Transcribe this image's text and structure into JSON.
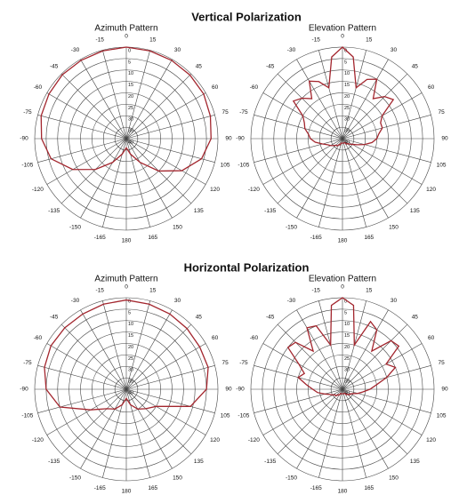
{
  "sections": [
    {
      "title": "Vertical Polarization"
    },
    {
      "title": "Horizontal Polarization"
    }
  ],
  "chart_data": [
    {
      "type": "polar",
      "title": "Azimuth Pattern",
      "theta": [
        -165,
        -150,
        -135,
        -120,
        -105,
        -90,
        -75,
        -60,
        -45,
        -30,
        -15,
        0,
        15,
        30,
        45,
        60,
        75,
        90,
        105,
        120,
        135,
        150,
        165,
        180
      ],
      "series": [
        {
          "color": "#a3262e",
          "values": [
            33,
            28,
            21,
            13,
            6,
            3,
            1.5,
            1,
            0.5,
            0.5,
            0.3,
            0,
            0.3,
            0.5,
            0.7,
            1,
            2,
            3,
            6,
            12,
            20,
            28,
            33,
            36
          ]
        }
      ],
      "rlim": [
        40,
        0
      ],
      "rticks": [
        0,
        5,
        10,
        15,
        20,
        25,
        30,
        35,
        40
      ],
      "thetaticks": [
        0,
        15,
        30,
        45,
        60,
        75,
        90,
        105,
        120,
        135,
        150,
        165,
        180,
        -165,
        -150,
        -135,
        -120,
        -105,
        -90,
        -75,
        -60,
        -45,
        -30,
        -15
      ],
      "grid": true
    },
    {
      "type": "polar",
      "title": "Elevation Pattern",
      "theta": [
        -172.5,
        -165,
        -157.5,
        -150,
        -142.5,
        -135,
        -127.5,
        -120,
        -112.5,
        -105,
        -97.5,
        -90,
        -82.5,
        -75,
        -67.5,
        -60,
        -52.5,
        -45,
        -37.5,
        -30,
        -22.5,
        -15,
        -7.5,
        0,
        7.5,
        15,
        22.5,
        30,
        37.5,
        45,
        52.5,
        60,
        67.5,
        75,
        82.5,
        90,
        97.5,
        105,
        112.5,
        120,
        127.5,
        135,
        142.5,
        150,
        157.5,
        165,
        172.5,
        180
      ],
      "series": [
        {
          "color": "#a3262e",
          "values": [
            38,
            38,
            37,
            37,
            36,
            36,
            35,
            34,
            33,
            31,
            28,
            26,
            25,
            23,
            22,
            20,
            13,
            15,
            18,
            11,
            13,
            17,
            4,
            0,
            4,
            17,
            12,
            10,
            18,
            14,
            12,
            20,
            22,
            22,
            24,
            25,
            27,
            30,
            33,
            35,
            36,
            37,
            37,
            38,
            38,
            38,
            38,
            38
          ]
        }
      ],
      "rlim": [
        40,
        0
      ],
      "rticks": [
        0,
        5,
        10,
        15,
        20,
        25,
        30,
        35,
        40
      ],
      "thetaticks": [
        0,
        15,
        30,
        45,
        60,
        75,
        90,
        105,
        120,
        135,
        150,
        165,
        180,
        -165,
        -150,
        -135,
        -120,
        -105,
        -90,
        -75,
        -60,
        -45,
        -30,
        -15
      ],
      "grid": true
    },
    {
      "type": "polar",
      "title": "Azimuth Pattern",
      "theta": [
        -165,
        -150,
        -135,
        -120,
        -105,
        -90,
        -75,
        -60,
        -45,
        -30,
        -15,
        0,
        15,
        30,
        45,
        60,
        75,
        90,
        105,
        120,
        135,
        150,
        165,
        180
      ],
      "series": [
        {
          "color": "#a3262e",
          "values": [
            33,
            30,
            28,
            22,
            10,
            5,
            3,
            2,
            2,
            2,
            1.5,
            1,
            1.5,
            2,
            2.5,
            3,
            3,
            5,
            11,
            25,
            28,
            30,
            33,
            36
          ]
        }
      ],
      "rlim": [
        40,
        0
      ],
      "rticks": [
        0,
        5,
        10,
        15,
        20,
        25,
        30,
        35,
        40
      ],
      "thetaticks": [
        0,
        15,
        30,
        45,
        60,
        75,
        90,
        105,
        120,
        135,
        150,
        165,
        180,
        -165,
        -150,
        -135,
        -120,
        -105,
        -90,
        -75,
        -60,
        -45,
        -30,
        -15
      ],
      "grid": true
    },
    {
      "type": "polar",
      "title": "Elevation Pattern",
      "theta": [
        -172.5,
        -165,
        -157.5,
        -150,
        -142.5,
        -135,
        -127.5,
        -120,
        -112.5,
        -105,
        -97.5,
        -90,
        -82.5,
        -75,
        -67.5,
        -60,
        -52.5,
        -45,
        -37.5,
        -30,
        -22.5,
        -15,
        -7.5,
        0,
        7.5,
        15,
        22.5,
        30,
        37.5,
        45,
        52.5,
        60,
        67.5,
        75,
        82.5,
        90,
        97.5,
        105,
        112.5,
        120,
        127.5,
        135,
        142.5,
        150,
        157.5,
        165,
        172.5,
        180
      ],
      "series": [
        {
          "color": "#a3262e",
          "values": [
            38,
            38,
            38,
            37,
            37,
            36,
            36,
            35,
            34,
            32,
            29,
            27,
            24,
            20,
            22,
            18,
            10,
            11,
            19,
            9,
            10,
            20,
            3,
            0,
            3,
            20,
            8,
            10,
            19,
            10,
            9,
            18,
            15,
            20,
            25,
            28,
            31,
            33,
            35,
            36,
            36,
            37,
            37,
            38,
            38,
            38,
            38,
            38
          ]
        }
      ],
      "rlim": [
        40,
        0
      ],
      "rticks": [
        0,
        5,
        10,
        15,
        20,
        25,
        30,
        35,
        40
      ],
      "thetaticks": [
        0,
        15,
        30,
        45,
        60,
        75,
        90,
        105,
        120,
        135,
        150,
        165,
        180,
        -165,
        -150,
        -135,
        -120,
        -105,
        -90,
        -75,
        -60,
        -45,
        -30,
        -15
      ],
      "grid": true
    }
  ]
}
